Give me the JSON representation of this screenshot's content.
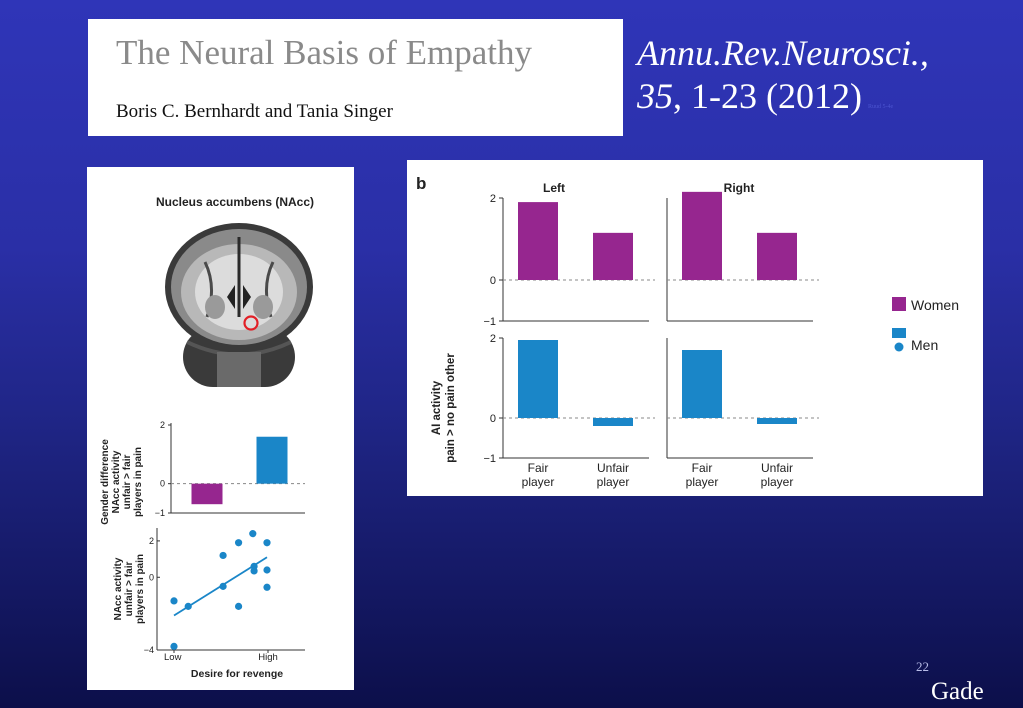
{
  "reference": {
    "title": "The Neural Basis of Empathy",
    "authors": "Boris C. Bernhardt and Tania Singer",
    "journal": "Annu.Rev.Neurosci.,",
    "volume": "35",
    "pages_year": ", 1-23 (2012)",
    "tiny_note": "Ruud 5-4e"
  },
  "slide_number": "22",
  "footer_name": "Gade",
  "colors": {
    "women": "#96268f",
    "men": "#1a86c8",
    "slide_bg": "#2a2fa6"
  },
  "left_panel": {
    "title": "Nucleus accumbens (NAcc)",
    "brain_image": "coronal-brain-mri-with-red-circle"
  },
  "chart_data": [
    {
      "id": "gender-difference",
      "type": "bar",
      "ylabel_lines": [
        "Gender difference",
        "NAcc activity",
        "unfair > fair",
        "players in pain"
      ],
      "yticks": [
        "2",
        "0",
        "−1"
      ],
      "ylim": [
        -1,
        2
      ],
      "values": [
        -0.7,
        1.6
      ],
      "colors": [
        "#96268f",
        "#1a86c8"
      ]
    },
    {
      "id": "revenge-scatter",
      "type": "scatter",
      "ylabel_lines": [
        "NAcc activity",
        "unfair > fair",
        "players in pain"
      ],
      "yticks": [
        "2",
        "0",
        "−4"
      ],
      "xticks": [
        "Low",
        "High"
      ],
      "xlabel": "Desire for revenge",
      "ylim": [
        -4,
        2.6
      ],
      "xlim": [
        0,
        1
      ],
      "points": [
        {
          "x": 0.0,
          "y": -1.3
        },
        {
          "x": 0.0,
          "y": -3.8
        },
        {
          "x": 0.11,
          "y": -1.6
        },
        {
          "x": 0.38,
          "y": 1.2
        },
        {
          "x": 0.38,
          "y": -0.5
        },
        {
          "x": 0.5,
          "y": 1.9
        },
        {
          "x": 0.5,
          "y": -1.6
        },
        {
          "x": 0.61,
          "y": 2.4
        },
        {
          "x": 0.62,
          "y": 0.6
        },
        {
          "x": 0.62,
          "y": 0.35
        },
        {
          "x": 0.72,
          "y": 1.9
        },
        {
          "x": 0.72,
          "y": 0.4
        },
        {
          "x": 0.72,
          "y": -0.55
        }
      ],
      "trend": [
        [
          0.0,
          -2.1
        ],
        [
          0.72,
          1.1
        ]
      ]
    },
    {
      "id": "ai-activity",
      "type": "bar",
      "panel_label": "b",
      "ylabel_lines": [
        "AI activity",
        "pain > no pain other"
      ],
      "column_titles": [
        "Left",
        "Right"
      ],
      "yticks": [
        "2",
        "0",
        "−1"
      ],
      "ylim": [
        -1,
        2
      ],
      "categories": [
        [
          "Fair",
          "player"
        ],
        [
          "Unfair",
          "player"
        ]
      ],
      "legend": [
        {
          "name": "Women",
          "color": "#96268f"
        },
        {
          "name": "Men",
          "color": "#1a86c8"
        }
      ],
      "series": [
        {
          "name": "Women",
          "side": "Left",
          "values": [
            1.9,
            1.15
          ]
        },
        {
          "name": "Women",
          "side": "Right",
          "values": [
            2.15,
            1.15
          ]
        },
        {
          "name": "Men",
          "side": "Left",
          "values": [
            1.95,
            -0.2
          ]
        },
        {
          "name": "Men",
          "side": "Right",
          "values": [
            1.7,
            -0.15
          ]
        }
      ]
    }
  ]
}
